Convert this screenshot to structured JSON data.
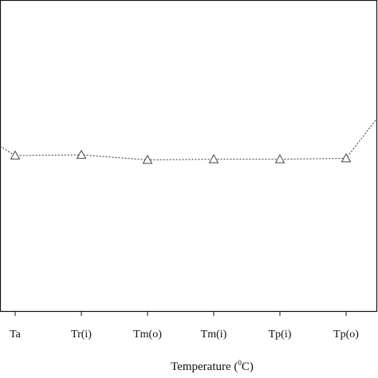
{
  "chart_data": {
    "type": "line",
    "categories": [
      "Ta",
      "Tr(i)",
      "Tm(o)",
      "Tm(i)",
      "Tp(i)",
      "Tp(o)"
    ],
    "series": [
      {
        "marker": "open-triangle",
        "line_style": "dotted",
        "color": "#333333",
        "values": [
          0.5,
          0.502,
          0.486,
          0.488,
          0.488,
          0.491
        ]
      }
    ],
    "lead_in_value": 0.53,
    "trail_out_value": 0.62,
    "ylim": [
      0,
      1
    ],
    "grid": false,
    "legend": "none",
    "xlabel": {
      "prefix": "Temperature (",
      "superscript": "0",
      "suffix": "C)"
    },
    "ylabel": ""
  }
}
